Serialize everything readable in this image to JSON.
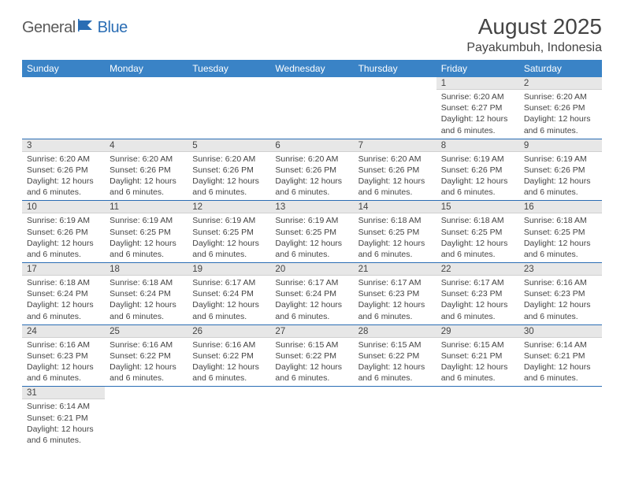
{
  "logo": {
    "part1": "General",
    "part2": "Blue"
  },
  "title": "August 2025",
  "location": "Payakumbuh, Indonesia",
  "colors": {
    "header_bg": "#3a83c6",
    "header_text": "#ffffff",
    "row_divider": "#2a6db4",
    "daynum_bg": "#e7e7e7",
    "logo_gray": "#5a5a5a",
    "logo_blue": "#2a6db4",
    "text": "#444444",
    "page_bg": "#ffffff"
  },
  "day_headers": [
    "Sunday",
    "Monday",
    "Tuesday",
    "Wednesday",
    "Thursday",
    "Friday",
    "Saturday"
  ],
  "labels": {
    "sunrise_prefix": "Sunrise: ",
    "sunset_prefix": "Sunset: ",
    "daylight_prefix": "Daylight: ",
    "daylight_suffix_hours": " hours",
    "daylight_and": "and ",
    "daylight_suffix_min": " minutes."
  },
  "weeks": [
    [
      null,
      null,
      null,
      null,
      null,
      {
        "n": "1",
        "sunrise": "6:20 AM",
        "sunset": "6:27 PM",
        "dl_h": "12",
        "dl_m": "6"
      },
      {
        "n": "2",
        "sunrise": "6:20 AM",
        "sunset": "6:26 PM",
        "dl_h": "12",
        "dl_m": "6"
      }
    ],
    [
      {
        "n": "3",
        "sunrise": "6:20 AM",
        "sunset": "6:26 PM",
        "dl_h": "12",
        "dl_m": "6"
      },
      {
        "n": "4",
        "sunrise": "6:20 AM",
        "sunset": "6:26 PM",
        "dl_h": "12",
        "dl_m": "6"
      },
      {
        "n": "5",
        "sunrise": "6:20 AM",
        "sunset": "6:26 PM",
        "dl_h": "12",
        "dl_m": "6"
      },
      {
        "n": "6",
        "sunrise": "6:20 AM",
        "sunset": "6:26 PM",
        "dl_h": "12",
        "dl_m": "6"
      },
      {
        "n": "7",
        "sunrise": "6:20 AM",
        "sunset": "6:26 PM",
        "dl_h": "12",
        "dl_m": "6"
      },
      {
        "n": "8",
        "sunrise": "6:19 AM",
        "sunset": "6:26 PM",
        "dl_h": "12",
        "dl_m": "6"
      },
      {
        "n": "9",
        "sunrise": "6:19 AM",
        "sunset": "6:26 PM",
        "dl_h": "12",
        "dl_m": "6"
      }
    ],
    [
      {
        "n": "10",
        "sunrise": "6:19 AM",
        "sunset": "6:26 PM",
        "dl_h": "12",
        "dl_m": "6"
      },
      {
        "n": "11",
        "sunrise": "6:19 AM",
        "sunset": "6:25 PM",
        "dl_h": "12",
        "dl_m": "6"
      },
      {
        "n": "12",
        "sunrise": "6:19 AM",
        "sunset": "6:25 PM",
        "dl_h": "12",
        "dl_m": "6"
      },
      {
        "n": "13",
        "sunrise": "6:19 AM",
        "sunset": "6:25 PM",
        "dl_h": "12",
        "dl_m": "6"
      },
      {
        "n": "14",
        "sunrise": "6:18 AM",
        "sunset": "6:25 PM",
        "dl_h": "12",
        "dl_m": "6"
      },
      {
        "n": "15",
        "sunrise": "6:18 AM",
        "sunset": "6:25 PM",
        "dl_h": "12",
        "dl_m": "6"
      },
      {
        "n": "16",
        "sunrise": "6:18 AM",
        "sunset": "6:25 PM",
        "dl_h": "12",
        "dl_m": "6"
      }
    ],
    [
      {
        "n": "17",
        "sunrise": "6:18 AM",
        "sunset": "6:24 PM",
        "dl_h": "12",
        "dl_m": "6"
      },
      {
        "n": "18",
        "sunrise": "6:18 AM",
        "sunset": "6:24 PM",
        "dl_h": "12",
        "dl_m": "6"
      },
      {
        "n": "19",
        "sunrise": "6:17 AM",
        "sunset": "6:24 PM",
        "dl_h": "12",
        "dl_m": "6"
      },
      {
        "n": "20",
        "sunrise": "6:17 AM",
        "sunset": "6:24 PM",
        "dl_h": "12",
        "dl_m": "6"
      },
      {
        "n": "21",
        "sunrise": "6:17 AM",
        "sunset": "6:23 PM",
        "dl_h": "12",
        "dl_m": "6"
      },
      {
        "n": "22",
        "sunrise": "6:17 AM",
        "sunset": "6:23 PM",
        "dl_h": "12",
        "dl_m": "6"
      },
      {
        "n": "23",
        "sunrise": "6:16 AM",
        "sunset": "6:23 PM",
        "dl_h": "12",
        "dl_m": "6"
      }
    ],
    [
      {
        "n": "24",
        "sunrise": "6:16 AM",
        "sunset": "6:23 PM",
        "dl_h": "12",
        "dl_m": "6"
      },
      {
        "n": "25",
        "sunrise": "6:16 AM",
        "sunset": "6:22 PM",
        "dl_h": "12",
        "dl_m": "6"
      },
      {
        "n": "26",
        "sunrise": "6:16 AM",
        "sunset": "6:22 PM",
        "dl_h": "12",
        "dl_m": "6"
      },
      {
        "n": "27",
        "sunrise": "6:15 AM",
        "sunset": "6:22 PM",
        "dl_h": "12",
        "dl_m": "6"
      },
      {
        "n": "28",
        "sunrise": "6:15 AM",
        "sunset": "6:22 PM",
        "dl_h": "12",
        "dl_m": "6"
      },
      {
        "n": "29",
        "sunrise": "6:15 AM",
        "sunset": "6:21 PM",
        "dl_h": "12",
        "dl_m": "6"
      },
      {
        "n": "30",
        "sunrise": "6:14 AM",
        "sunset": "6:21 PM",
        "dl_h": "12",
        "dl_m": "6"
      }
    ],
    [
      {
        "n": "31",
        "sunrise": "6:14 AM",
        "sunset": "6:21 PM",
        "dl_h": "12",
        "dl_m": "6"
      },
      null,
      null,
      null,
      null,
      null,
      null
    ]
  ]
}
